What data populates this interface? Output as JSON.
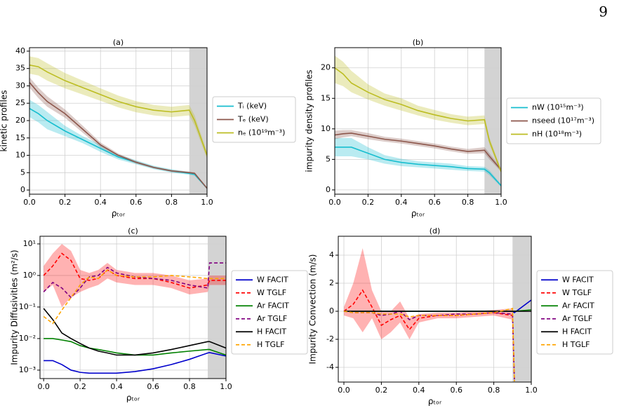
{
  "page_number": "9",
  "chart_data": [
    {
      "type": "line",
      "title": "(a)",
      "xlabel": "ρₜₒᵣ",
      "ylabel": "kinetic profiles",
      "x": [
        0,
        0.05,
        0.1,
        0.2,
        0.3,
        0.4,
        0.5,
        0.6,
        0.7,
        0.8,
        0.9,
        0.93,
        1.0
      ],
      "xlim": [
        0,
        1.0
      ],
      "xticks": [
        {
          "value": 0,
          "label": "0.0"
        },
        0.2,
        0.4,
        0.6,
        0.8,
        {
          "value": 1,
          "label": "1.0"
        }
      ],
      "ylim": [
        -1.2,
        41
      ],
      "yticks": [
        0,
        5,
        10,
        15,
        20,
        25,
        30,
        35,
        40
      ],
      "grid": true,
      "shaded_region": [
        0.9,
        1.0
      ],
      "series": [
        {
          "name": "Tᵢ (keV)",
          "color": "#17becf",
          "linestyle": "solid",
          "values": [
            23.5,
            22,
            20,
            17,
            14.5,
            12,
            9.5,
            8,
            6.5,
            5.5,
            4.8,
            4.5,
            0.5
          ],
          "lower": [
            21,
            19.5,
            17.5,
            15.5,
            13.5,
            11,
            8.8,
            7.4,
            6,
            5,
            4.4,
            4.1,
            0.3
          ],
          "upper": [
            26,
            24.5,
            22.5,
            18.5,
            15.5,
            13,
            10.2,
            8.6,
            7,
            6,
            5.2,
            4.9,
            0.7
          ]
        },
        {
          "name": "Tₑ (keV)",
          "color": "#8c564b",
          "linestyle": "solid",
          "values": [
            31,
            28,
            25.5,
            22,
            17.5,
            13,
            10,
            8,
            6.5,
            5.5,
            5,
            4.8,
            0.5
          ],
          "lower": [
            29.5,
            26.5,
            24,
            20.8,
            16.5,
            12.3,
            9.5,
            7.6,
            6.2,
            5.2,
            4.7,
            4.5,
            0.3
          ],
          "upper": [
            32.5,
            29.5,
            27,
            23.2,
            18.5,
            13.7,
            10.5,
            8.4,
            6.8,
            5.8,
            5.3,
            5.1,
            0.7
          ]
        },
        {
          "name": "nₑ (10¹⁹m⁻³)",
          "color": "#bcbd22",
          "linestyle": "solid",
          "values": [
            36,
            35.5,
            34,
            31.5,
            29.5,
            27.5,
            25.5,
            24,
            23,
            22.5,
            23,
            20,
            10
          ],
          "lower": [
            33.5,
            33,
            31.5,
            29.3,
            27.5,
            25.7,
            23.8,
            22.4,
            21.5,
            21,
            21.5,
            18.5,
            9
          ],
          "upper": [
            38.5,
            38,
            36.5,
            33.7,
            31.5,
            29.3,
            27.2,
            25.6,
            24.5,
            24,
            24.5,
            21.5,
            11
          ]
        }
      ]
    },
    {
      "type": "line",
      "title": "(b)",
      "xlabel": "ρₜₒᵣ",
      "ylabel": "impurity density profiles",
      "x": [
        0,
        0.05,
        0.1,
        0.2,
        0.3,
        0.4,
        0.5,
        0.6,
        0.7,
        0.8,
        0.9,
        0.93,
        1.0
      ],
      "xlim": [
        0,
        1.0
      ],
      "xticks": [
        {
          "value": 0,
          "label": "0.0"
        },
        0.2,
        0.4,
        0.6,
        0.8,
        {
          "value": 1,
          "label": "1.0"
        }
      ],
      "ylim": [
        -0.7,
        23.3
      ],
      "yticks": [
        0,
        5,
        10,
        15,
        20
      ],
      "grid": true,
      "shaded_region": [
        0.9,
        1.0
      ],
      "series": [
        {
          "name": "nW (10¹⁵m⁻³)",
          "color": "#17becf",
          "linestyle": "solid",
          "values": [
            7,
            7,
            7,
            6,
            5,
            4.5,
            4.2,
            4,
            3.8,
            3.5,
            3.4,
            2.8,
            0.7
          ],
          "lower": [
            5.5,
            5.5,
            5.5,
            5,
            4.3,
            3.9,
            3.7,
            3.5,
            3.3,
            3.1,
            3,
            2.4,
            0.5
          ],
          "upper": [
            8.5,
            8.5,
            8.5,
            7,
            5.7,
            5.1,
            4.7,
            4.5,
            4.3,
            3.9,
            3.8,
            3.2,
            0.9
          ]
        },
        {
          "name": "nseed (10¹⁷m⁻³)",
          "color": "#8c564b",
          "linestyle": "solid",
          "values": [
            9,
            9.2,
            9.3,
            8.8,
            8.3,
            8,
            7.6,
            7.2,
            6.7,
            6.3,
            6.5,
            5.5,
            3.3
          ],
          "lower": [
            8.3,
            8.6,
            8.8,
            8.3,
            7.9,
            7.6,
            7.2,
            6.8,
            6.3,
            5.9,
            6,
            5,
            3
          ],
          "upper": [
            9.7,
            9.8,
            9.8,
            9.3,
            8.7,
            8.4,
            8,
            7.6,
            7.1,
            6.7,
            7,
            6,
            3.6
          ]
        },
        {
          "name": "nH (10¹⁸m⁻³)",
          "color": "#bcbd22",
          "linestyle": "solid",
          "values": [
            20,
            19,
            17.5,
            16,
            14.8,
            14,
            13,
            12.3,
            11.7,
            11.3,
            11.5,
            8,
            3
          ],
          "lower": [
            17.5,
            17,
            16,
            14.8,
            13.8,
            13,
            12.2,
            11.5,
            11,
            10.6,
            10.8,
            7.4,
            2.7
          ],
          "upper": [
            22,
            21,
            19.5,
            17.3,
            15.8,
            15,
            13.8,
            13.1,
            12.4,
            12,
            12.2,
            8.6,
            3.3
          ]
        }
      ]
    },
    {
      "type": "line",
      "title": "(c)",
      "xlabel": "ρₜₒᵣ",
      "ylabel": "Impurity Diffusivities (m²/s)",
      "x": [
        0,
        0.05,
        0.1,
        0.15,
        0.2,
        0.25,
        0.3,
        0.35,
        0.4,
        0.5,
        0.6,
        0.7,
        0.8,
        0.9,
        0.91,
        1.0
      ],
      "xlim": [
        -0.02,
        1.0
      ],
      "xticks": [
        {
          "value": 0,
          "label": "0.0"
        },
        0.2,
        0.4,
        0.6,
        0.8,
        {
          "value": 1,
          "label": "1.0"
        }
      ],
      "yscale": "log",
      "ylim": [
        0.00054,
        17.5
      ],
      "yticks": [
        {
          "value": 0.001,
          "label": "10⁻³"
        },
        {
          "value": 0.01,
          "label": "10⁻²"
        },
        {
          "value": 0.1,
          "label": "10⁻¹"
        },
        {
          "value": 1,
          "label": "10⁰"
        },
        {
          "value": 10,
          "label": "10¹"
        }
      ],
      "grid": true,
      "shaded_region": [
        0.9,
        1.0
      ],
      "series": [
        {
          "name": "W FACIT",
          "color": "#0000cc",
          "linestyle": "solid",
          "values": [
            0.002,
            0.002,
            0.0015,
            0.001,
            0.00085,
            0.0008,
            0.0008,
            0.0008,
            0.0008,
            0.0009,
            0.0011,
            0.0015,
            0.0022,
            0.0035,
            0.0036,
            0.0028
          ]
        },
        {
          "name": "W TGLF",
          "color": "#ff0000",
          "linestyle": "dashed",
          "values": [
            1,
            2,
            5,
            3,
            0.8,
            0.7,
            0.8,
            1.5,
            1,
            0.8,
            0.8,
            0.6,
            0.4,
            0.5,
            0.7,
            0.7
          ],
          "lower": [
            0.3,
            0.5,
            0.1,
            0.2,
            0.3,
            0.4,
            0.5,
            0.8,
            0.6,
            0.5,
            0.5,
            0.4,
            0.25,
            0.3,
            0.5,
            0.5
          ],
          "upper": [
            2,
            5,
            10,
            6,
            1.5,
            1.2,
            1.5,
            2.5,
            1.5,
            1.2,
            1.2,
            1,
            0.7,
            0.8,
            1,
            1
          ]
        },
        {
          "name": "Ar FACIT",
          "color": "#008000",
          "linestyle": "solid",
          "values": [
            0.01,
            0.01,
            0.009,
            0.008,
            0.006,
            0.005,
            0.0045,
            0.004,
            0.0035,
            0.003,
            0.003,
            0.0035,
            0.004,
            0.0045,
            0.0045,
            0.003
          ]
        },
        {
          "name": "Ar TGLF",
          "color": "#800080",
          "linestyle": "dashed",
          "values": [
            0.3,
            0.6,
            0.4,
            0.2,
            0.4,
            0.9,
            1,
            1.8,
            1.2,
            0.9,
            0.8,
            0.7,
            0.5,
            0.4,
            2.5,
            2.5
          ]
        },
        {
          "name": "H FACIT",
          "color": "#000000",
          "linestyle": "solid",
          "values": [
            0.09,
            0.04,
            0.015,
            0.01,
            0.007,
            0.005,
            0.004,
            0.0035,
            0.003,
            0.003,
            0.0035,
            0.0045,
            0.006,
            0.008,
            0.008,
            0.005
          ]
        },
        {
          "name": "H TGLF",
          "color": "#ffa500",
          "linestyle": "dashed",
          "values": [
            0.05,
            0.03,
            0.08,
            0.2,
            0.5,
            0.9,
            0.8,
            1.5,
            1,
            0.9,
            0.9,
            1,
            0.9,
            0.8,
            0.8,
            0.8
          ]
        }
      ]
    },
    {
      "type": "line",
      "title": "(d)",
      "xlabel": "ρₜₒᵣ",
      "ylabel": "Impurity Convection (m/s)",
      "x": [
        0,
        0.05,
        0.1,
        0.15,
        0.2,
        0.25,
        0.3,
        0.35,
        0.4,
        0.5,
        0.6,
        0.7,
        0.8,
        0.9,
        0.91,
        1.0
      ],
      "xlim": [
        -0.03,
        1.0
      ],
      "xticks": [
        {
          "value": 0,
          "label": "0.0"
        },
        0.2,
        0.4,
        0.6,
        0.8,
        {
          "value": 1,
          "label": "1.0"
        }
      ],
      "ylim": [
        -5.05,
        5.35
      ],
      "yticks": [
        -4,
        -2,
        0,
        2,
        4
      ],
      "grid": true,
      "shaded_region": [
        0.9,
        1.0
      ],
      "series": [
        {
          "name": "W FACIT",
          "color": "#0000cc",
          "linestyle": "solid",
          "values": [
            0,
            0,
            0,
            0,
            0,
            0,
            0,
            0,
            0,
            0,
            0,
            0,
            0,
            0,
            -0.1,
            0.8
          ]
        },
        {
          "name": "W TGLF",
          "color": "#ff0000",
          "linestyle": "dashed",
          "values": [
            0,
            0.5,
            1.5,
            0.3,
            -1,
            -0.6,
            -0.3,
            -1.3,
            -0.5,
            -0.3,
            -0.3,
            -0.2,
            -0.1,
            -0.3,
            -5,
            null
          ],
          "lower": [
            -0.3,
            -0.5,
            -1.5,
            -0.5,
            -2,
            -1.5,
            -0.8,
            -2,
            -0.8,
            -0.5,
            -0.5,
            -0.4,
            -0.3,
            -0.6,
            -5,
            null
          ],
          "upper": [
            0.3,
            2,
            4.5,
            1.5,
            0,
            0,
            0.7,
            -0.5,
            -0.2,
            -0.1,
            -0.1,
            0,
            0.1,
            0.2,
            -4.8,
            null
          ]
        },
        {
          "name": "Ar FACIT",
          "color": "#008000",
          "linestyle": "solid",
          "values": [
            0,
            0,
            0,
            0,
            0,
            0,
            0,
            0,
            0,
            0,
            0,
            0,
            0,
            0,
            0,
            0.1
          ]
        },
        {
          "name": "Ar TGLF",
          "color": "#800080",
          "linestyle": "dashed",
          "values": [
            0,
            -0.1,
            -0.1,
            -0.1,
            -0.3,
            -0.2,
            0,
            -0.6,
            -0.3,
            -0.3,
            -0.2,
            -0.2,
            -0.1,
            -0.2,
            -5,
            null
          ]
        },
        {
          "name": "H FACIT",
          "color": "#000000",
          "linestyle": "solid",
          "values": [
            0,
            0,
            0,
            0,
            0,
            0,
            0,
            0,
            0,
            0,
            0,
            0,
            0,
            0,
            0,
            0
          ]
        },
        {
          "name": "H TGLF",
          "color": "#ffa500",
          "linestyle": "dashed",
          "values": [
            0,
            -0.1,
            -0.1,
            -0.1,
            -0.2,
            -0.2,
            -0.2,
            -0.4,
            -0.3,
            -0.3,
            -0.3,
            -0.2,
            -0.1,
            0.2,
            -5,
            null
          ]
        }
      ]
    }
  ]
}
